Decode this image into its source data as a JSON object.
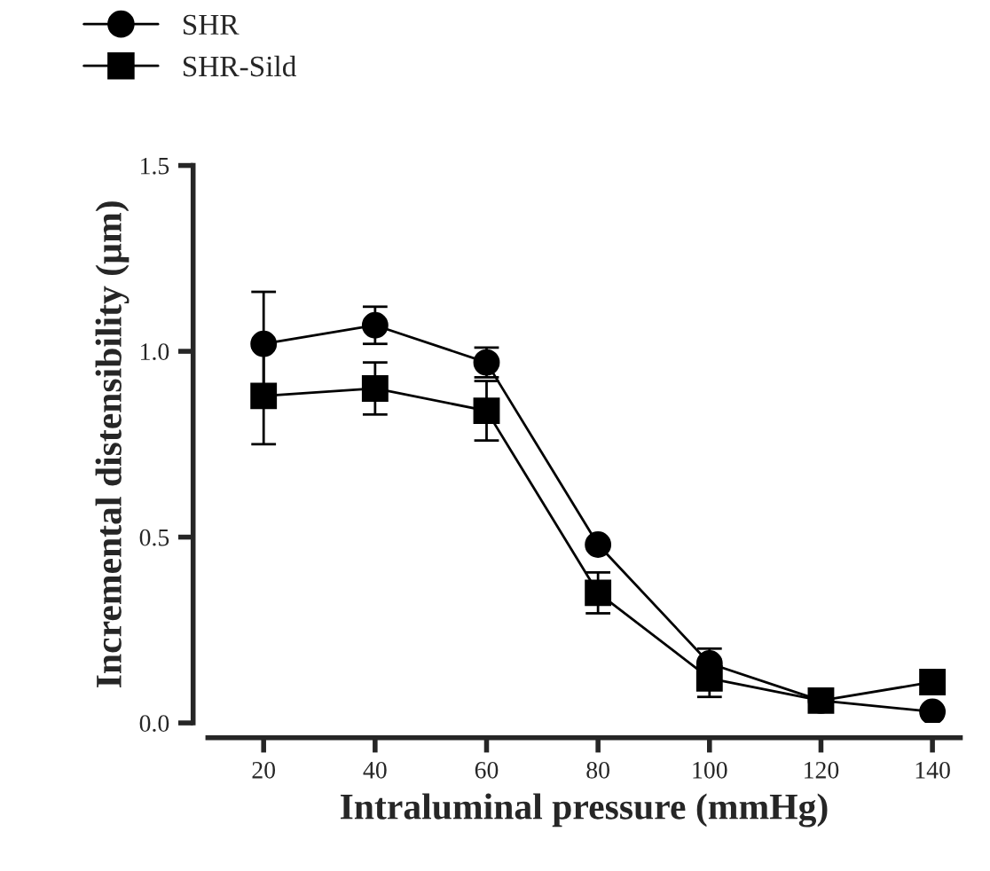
{
  "chart_data": {
    "type": "line",
    "xlabel": "Intraluminal pressure (mmHg)",
    "ylabel": "Incremental distensibility (µm)",
    "x": [
      20,
      40,
      60,
      80,
      100,
      120,
      140
    ],
    "series": [
      {
        "name": "SHR",
        "color": "#000000",
        "marker": "circle",
        "values": [
          1.02,
          1.07,
          0.97,
          0.48,
          0.16,
          0.06,
          0.03
        ],
        "errors": [
          0.14,
          0.05,
          0.04,
          null,
          0.04,
          null,
          null
        ]
      },
      {
        "name": "SHR-Sild",
        "color": "#000000",
        "marker": "square",
        "values": [
          0.88,
          0.9,
          0.84,
          0.35,
          0.12,
          0.06,
          0.11
        ],
        "errors": [
          0.13,
          0.07,
          0.08,
          0.055,
          0.05,
          null,
          null
        ]
      }
    ],
    "xlim": [
      10,
      145
    ],
    "xticks": [
      20,
      40,
      60,
      80,
      100,
      120,
      140
    ],
    "ylim": [
      0,
      1.5
    ],
    "yticks": [
      {
        "value": 0,
        "label": "0.0"
      },
      {
        "value": 0.5,
        "label": "0.5"
      },
      {
        "value": 1.0,
        "label": "1.0"
      },
      {
        "value": 1.5,
        "label": "1.5"
      }
    ],
    "legend": "top left",
    "grid": false
  }
}
